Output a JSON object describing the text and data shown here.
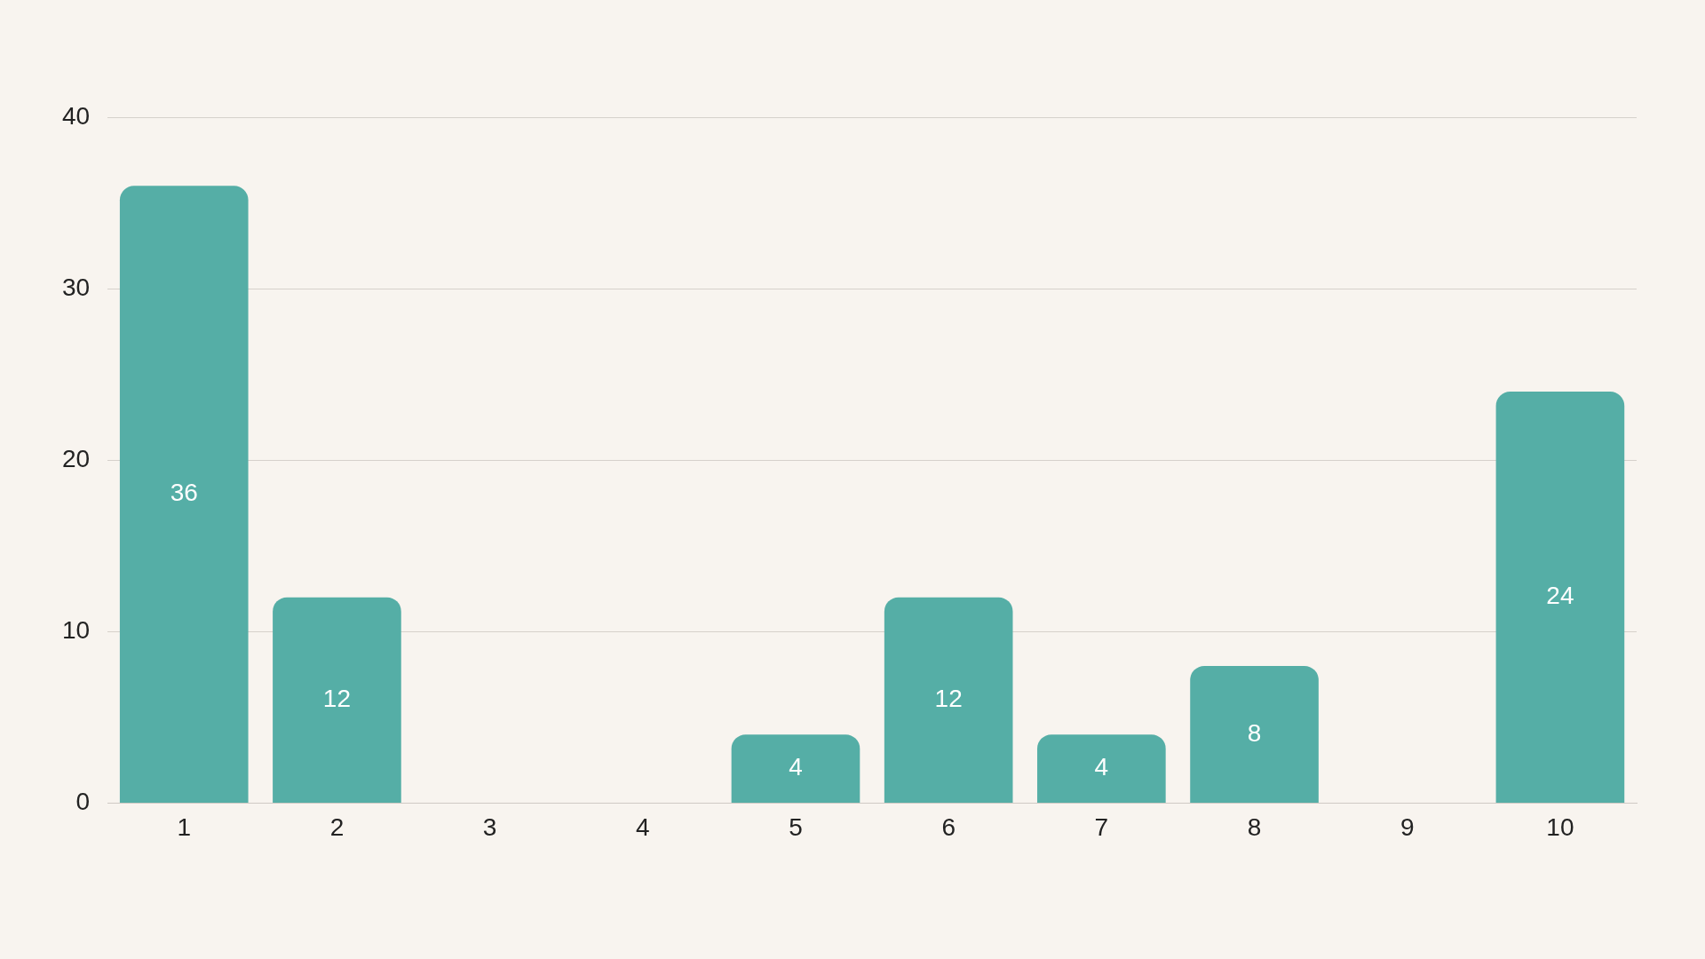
{
  "chart_data": {
    "type": "bar",
    "categories": [
      "1",
      "2",
      "3",
      "4",
      "5",
      "6",
      "7",
      "8",
      "9",
      "10"
    ],
    "values": [
      36,
      12,
      0,
      0,
      4,
      12,
      4,
      8,
      0,
      24
    ],
    "value_labels": [
      "36",
      "12",
      null,
      null,
      "4",
      "12",
      "4",
      "8",
      null,
      "24"
    ],
    "color": "#55aea6",
    "ylim": [
      0,
      40
    ],
    "yticks": [
      0,
      10,
      20,
      30,
      40
    ],
    "grid": "y",
    "legend": false
  }
}
